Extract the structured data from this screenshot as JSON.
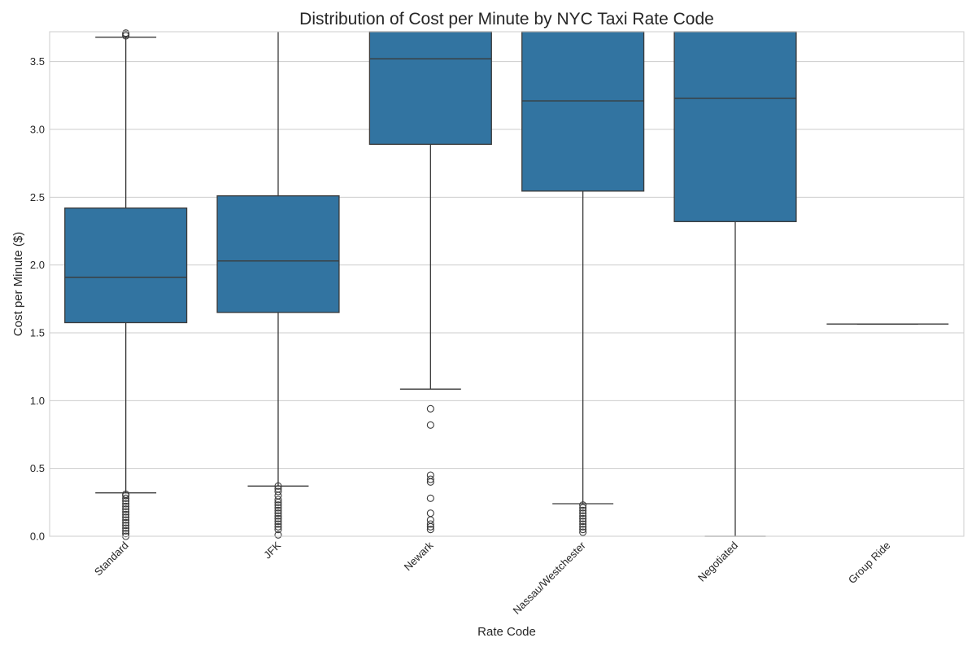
{
  "chart_data": {
    "type": "box",
    "title": "Distribution of Cost per Minute by NYC Taxi Rate Code",
    "xlabel": "Rate Code",
    "ylabel": "Cost per Minute ($)",
    "ylim": [
      0,
      3.72
    ],
    "yticks": [
      0.0,
      0.5,
      1.0,
      1.5,
      2.0,
      2.5,
      3.0,
      3.5
    ],
    "ytick_labels": [
      "0.0",
      "0.5",
      "1.0",
      "1.5",
      "2.0",
      "2.5",
      "3.0",
      "3.5"
    ],
    "grid": true,
    "box_color": "#3274a1",
    "categories": [
      "Standard",
      "JFK",
      "Newark",
      "Nassau/Westchester",
      "Negotiated",
      "Group Ride"
    ],
    "boxes": [
      {
        "category": "Standard",
        "whisker_low": 0.32,
        "q1": 1.575,
        "median": 1.91,
        "q3": 2.42,
        "whisker_high": 3.68,
        "outliers": [
          0.0,
          0.02,
          0.04,
          0.06,
          0.08,
          0.1,
          0.12,
          0.14,
          0.16,
          0.18,
          0.2,
          0.22,
          0.24,
          0.26,
          0.28,
          0.3,
          0.31,
          3.69,
          3.7,
          3.71
        ]
      },
      {
        "category": "JFK",
        "whisker_low": 0.37,
        "q1": 1.65,
        "median": 2.03,
        "q3": 2.51,
        "whisker_high": 3.72,
        "outliers": [
          0.01,
          0.05,
          0.07,
          0.09,
          0.11,
          0.13,
          0.15,
          0.17,
          0.19,
          0.21,
          0.23,
          0.25,
          0.27,
          0.3,
          0.33,
          0.35,
          0.37
        ]
      },
      {
        "category": "Newark",
        "whisker_low": 1.085,
        "q1": 2.89,
        "median": 3.52,
        "q3": 3.72,
        "whisker_high": 3.72,
        "outliers": [
          0.05,
          0.07,
          0.09,
          0.12,
          0.17,
          0.28,
          0.4,
          0.42,
          0.45,
          0.82,
          0.94
        ]
      },
      {
        "category": "Nassau/Westchester",
        "whisker_low": 0.24,
        "q1": 2.545,
        "median": 3.21,
        "q3": 3.72,
        "whisker_high": 3.72,
        "outliers": [
          0.03,
          0.05,
          0.07,
          0.09,
          0.11,
          0.13,
          0.15,
          0.17,
          0.19,
          0.21,
          0.23
        ]
      },
      {
        "category": "Negotiated",
        "whisker_low": 0.0,
        "q1": 2.32,
        "median": 3.23,
        "q3": 3.72,
        "whisker_high": 3.72,
        "outliers": []
      },
      {
        "category": "Group Ride",
        "whisker_low": 1.565,
        "q1": 1.565,
        "median": 1.565,
        "q3": 1.565,
        "whisker_high": 1.565,
        "outliers": []
      }
    ]
  }
}
